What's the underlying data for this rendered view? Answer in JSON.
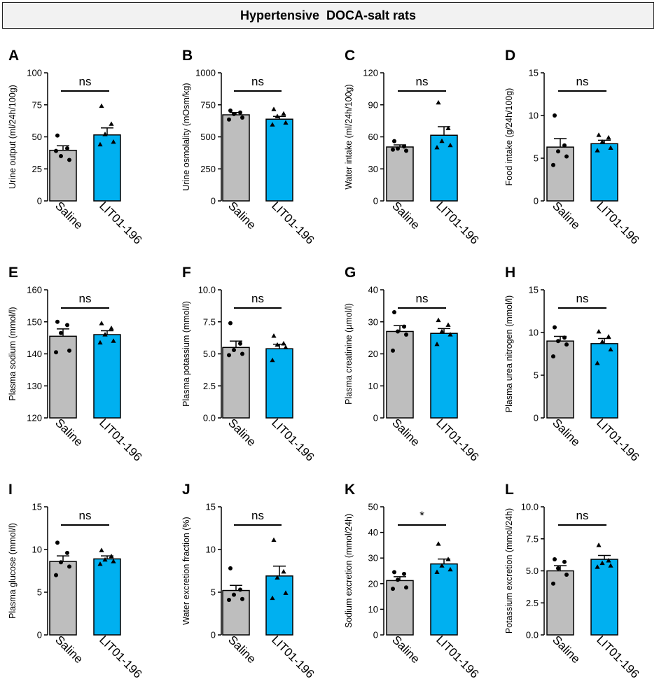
{
  "figure": {
    "title": "Hypertensive  DOCA-salt rats"
  },
  "colors": {
    "saline": "#bebebe",
    "lit": "#00b0f0",
    "axis": "#000000"
  },
  "chart_data": [
    {
      "type": "bar",
      "panel": "A",
      "ylabel": "Urine output (ml/24h/100g)",
      "categories": [
        "Saline",
        "LIT01-196"
      ],
      "ylim": [
        0,
        100
      ],
      "ticks": [
        0,
        25,
        50,
        75,
        100
      ],
      "tick_labels": [
        "0",
        "25",
        "50",
        "75",
        "100"
      ],
      "values": [
        39.5,
        51.5
      ],
      "sem": [
        3.5,
        5.5
      ],
      "significance": "ns",
      "points": [
        [
          51,
          41,
          35,
          32,
          39
        ],
        [
          74,
          60,
          52,
          46,
          44
        ]
      ]
    },
    {
      "type": "bar",
      "panel": "B",
      "ylabel": "Urine osmolality (mOsm/kg)",
      "categories": [
        "Saline",
        "LIT01-196"
      ],
      "ylim": [
        0,
        1000
      ],
      "ticks": [
        0,
        250,
        500,
        750,
        1000
      ],
      "tick_labels": [
        "0",
        "250",
        "500",
        "750",
        "1000"
      ],
      "values": [
        672,
        638
      ],
      "sem": [
        18,
        22
      ],
      "significance": "ns",
      "points": [
        [
          705,
          690,
          678,
          650,
          635
        ],
        [
          715,
          680,
          660,
          610,
          595
        ]
      ]
    },
    {
      "type": "bar",
      "panel": "C",
      "ylabel": "Water intake (ml/24h/100g)",
      "categories": [
        "Saline",
        "LIT01-196"
      ],
      "ylim": [
        0,
        120
      ],
      "ticks": [
        0,
        30,
        60,
        90,
        120
      ],
      "tick_labels": [
        "0",
        "30",
        "60",
        "90",
        "120"
      ],
      "values": [
        50.5,
        61.5
      ],
      "sem": [
        2.0,
        8.0
      ],
      "significance": "ns",
      "points": [
        [
          56,
          51,
          49,
          47,
          48
        ],
        [
          92,
          68,
          56,
          52,
          50
        ]
      ]
    },
    {
      "type": "bar",
      "panel": "D",
      "ylabel": "Food intake (g/24h/100g)",
      "categories": [
        "Saline",
        "LIT01-196"
      ],
      "ylim": [
        0,
        15
      ],
      "ticks": [
        0,
        5,
        10,
        15
      ],
      "tick_labels": [
        "0",
        "5",
        "10",
        "15"
      ],
      "values": [
        6.3,
        6.7
      ],
      "sem": [
        1.0,
        0.4
      ],
      "significance": "ns",
      "points": [
        [
          10.0,
          6.5,
          5.8,
          5.2,
          4.2
        ],
        [
          7.7,
          7.4,
          6.9,
          6.2,
          5.9
        ]
      ]
    },
    {
      "type": "bar",
      "panel": "E",
      "ylabel": "Plasma sodium (mmol/l)",
      "categories": [
        "Saline",
        "LIT01-196"
      ],
      "ylim": [
        120,
        160
      ],
      "ticks": [
        120,
        130,
        140,
        150,
        160
      ],
      "tick_labels": [
        "120",
        "130",
        "140",
        "150",
        "160"
      ],
      "values": [
        145.5,
        146.0
      ],
      "sem": [
        2.3,
        1.2
      ],
      "significance": "ns",
      "points": [
        [
          150,
          149,
          146.5,
          141,
          140.5
        ],
        [
          149.5,
          148,
          146,
          144,
          143.5
        ]
      ]
    },
    {
      "type": "bar",
      "panel": "F",
      "ylabel": "Plasma potassium (mmol/l)",
      "categories": [
        "Saline",
        "LIT01-196"
      ],
      "ylim": [
        0,
        10
      ],
      "ticks": [
        0,
        2.5,
        5,
        7.5,
        10
      ],
      "tick_labels": [
        "0.0",
        "2.5",
        "5.0",
        "7.5",
        "10.0"
      ],
      "values": [
        5.5,
        5.4
      ],
      "sem": [
        0.5,
        0.35
      ],
      "significance": "ns",
      "points": [
        [
          7.4,
          5.8,
          5.3,
          5.0,
          4.9
        ],
        [
          6.4,
          5.8,
          5.7,
          5.5,
          4.5
        ]
      ]
    },
    {
      "type": "bar",
      "panel": "G",
      "ylabel": "Plasma creatinine (µmol/l)",
      "categories": [
        "Saline",
        "LIT01-196"
      ],
      "ylim": [
        0,
        40
      ],
      "ticks": [
        0,
        10,
        20,
        30,
        40
      ],
      "tick_labels": [
        "0",
        "10",
        "20",
        "30",
        "40"
      ],
      "values": [
        27,
        26.4
      ],
      "sem": [
        1.8,
        1.5
      ],
      "significance": "ns",
      "points": [
        [
          33,
          28.5,
          27,
          26,
          21
        ],
        [
          30.5,
          29,
          27,
          26,
          23
        ]
      ]
    },
    {
      "type": "bar",
      "panel": "H",
      "ylabel": "Plasma urea nitrogen (mmol/l)",
      "categories": [
        "Saline",
        "LIT01-196"
      ],
      "ylim": [
        0,
        15
      ],
      "ticks": [
        0,
        5,
        10,
        15
      ],
      "tick_labels": [
        "0",
        "5",
        "10",
        "15"
      ],
      "values": [
        9.0,
        8.7
      ],
      "sem": [
        0.55,
        0.6
      ],
      "significance": "ns",
      "points": [
        [
          10.6,
          9.4,
          9.0,
          8.6,
          7.2
        ],
        [
          10.1,
          9.5,
          8.9,
          8.0,
          6.4
        ]
      ]
    },
    {
      "type": "bar",
      "panel": "I",
      "ylabel": "Plasma glucose (mmol/l)",
      "categories": [
        "Saline",
        "LIT01-196"
      ],
      "ylim": [
        0,
        15
      ],
      "ticks": [
        0,
        5,
        10,
        15
      ],
      "tick_labels": [
        "0",
        "5",
        "10",
        "15"
      ],
      "values": [
        8.6,
        8.9
      ],
      "sem": [
        0.65,
        0.35
      ],
      "significance": "ns",
      "points": [
        [
          10.8,
          9.6,
          8.5,
          8.0,
          7.0
        ],
        [
          9.9,
          9.2,
          8.8,
          8.6,
          8.3
        ]
      ]
    },
    {
      "type": "bar",
      "panel": "J",
      "ylabel": "Water excretion fraction (%)",
      "categories": [
        "Saline",
        "LIT01-196"
      ],
      "ylim": [
        0,
        15
      ],
      "ticks": [
        0,
        5,
        10,
        15
      ],
      "tick_labels": [
        "0",
        "5",
        "10",
        "15"
      ],
      "values": [
        5.2,
        6.9
      ],
      "sem": [
        0.6,
        1.15
      ],
      "significance": "ns",
      "points": [
        [
          7.8,
          5.3,
          4.7,
          4.2,
          4.1
        ],
        [
          11.1,
          7.4,
          6.7,
          4.9,
          4.3
        ]
      ]
    },
    {
      "type": "bar",
      "panel": "K",
      "ylabel": "Sodium excretion (mmol/24h)",
      "categories": [
        "Saline",
        "LIT01-196"
      ],
      "ylim": [
        0,
        50
      ],
      "ticks": [
        0,
        10,
        20,
        30,
        40,
        50
      ],
      "tick_labels": [
        "0",
        "10",
        "20",
        "30",
        "40",
        "50"
      ],
      "values": [
        21.2,
        27.7
      ],
      "sem": [
        1.5,
        1.9
      ],
      "significance": "*",
      "points": [
        [
          24.5,
          23.8,
          21.5,
          18.5,
          18.0
        ],
        [
          35.5,
          29.5,
          27.0,
          25.5,
          24.5
        ]
      ]
    },
    {
      "type": "bar",
      "panel": "L",
      "ylabel": "Potassium excretion (mmol/24h)",
      "categories": [
        "Saline",
        "LIT01-196"
      ],
      "ylim": [
        0,
        10
      ],
      "ticks": [
        0,
        2.5,
        5,
        7.5,
        10
      ],
      "tick_labels": [
        "0.0",
        "2.5",
        "5.0",
        "7.5",
        "10.0"
      ],
      "values": [
        5.0,
        5.9
      ],
      "sem": [
        0.4,
        0.3
      ],
      "significance": "ns",
      "points": [
        [
          5.9,
          5.7,
          5.2,
          4.7,
          4.0
        ],
        [
          7.0,
          5.8,
          5.6,
          5.4,
          5.3
        ]
      ]
    }
  ]
}
